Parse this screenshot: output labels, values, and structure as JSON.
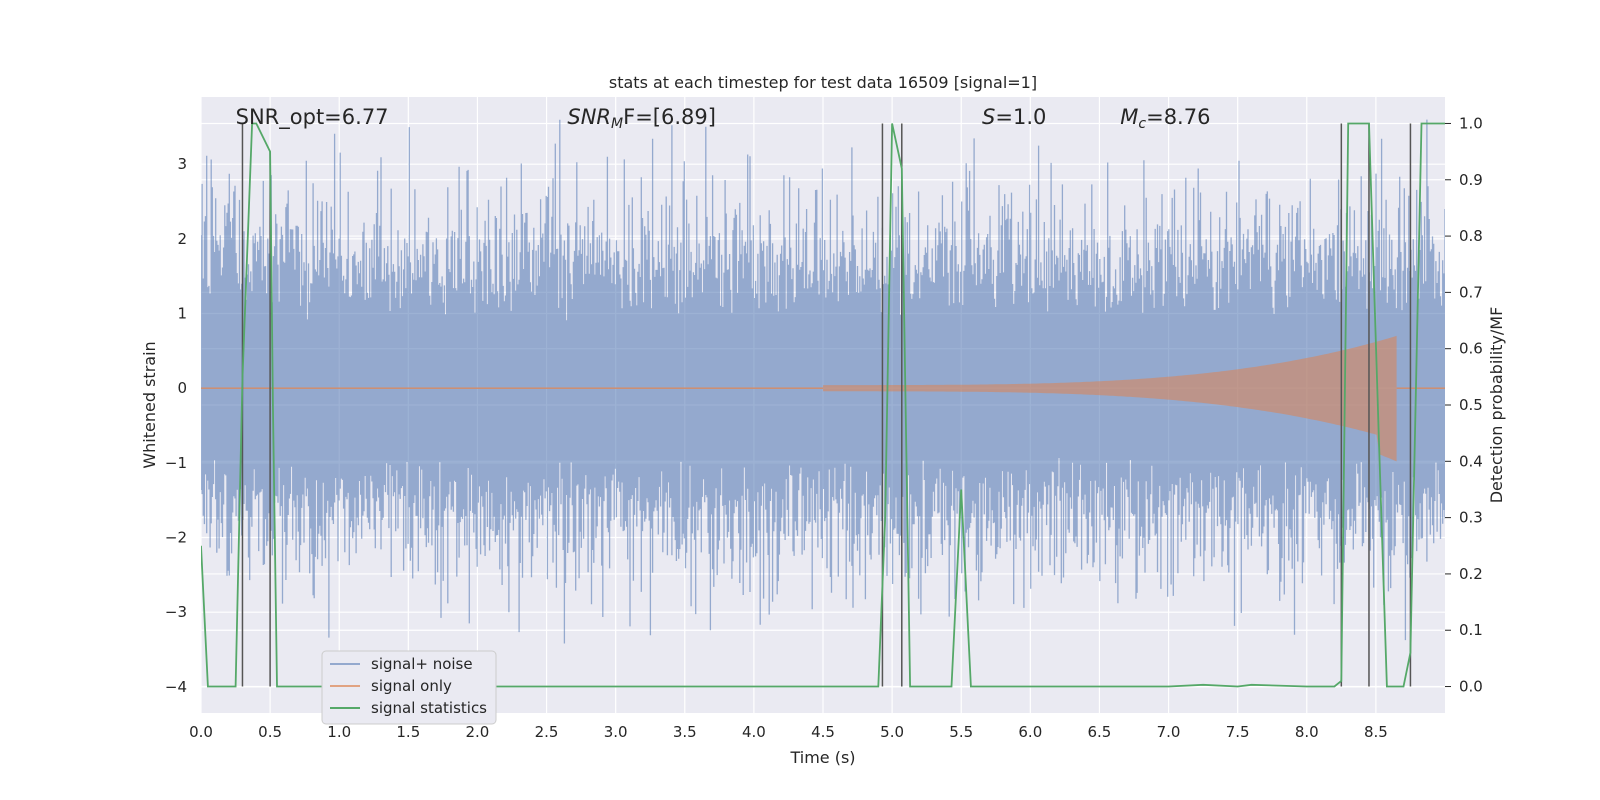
{
  "chart_data": {
    "type": "line",
    "title": "stats at each timestep for test data 16509 [signal=1]",
    "xlabel": "Time (s)",
    "ylabel": "Whitened strain",
    "ylabel_right": "Detection probability/MF",
    "xlim": [
      0.0,
      9.0
    ],
    "ylim": [
      -4.35,
      3.9
    ],
    "ylim_right": [
      -0.047,
      1.047
    ],
    "x_ticks": [
      0.0,
      0.5,
      1.0,
      1.5,
      2.0,
      2.5,
      3.0,
      3.5,
      4.0,
      4.5,
      5.0,
      5.5,
      6.0,
      6.5,
      7.0,
      7.5,
      8.0,
      8.5
    ],
    "x_tick_labels": [
      "0.0",
      "0.5",
      "1.0",
      "1.5",
      "2.0",
      "2.5",
      "3.0",
      "3.5",
      "4.0",
      "4.5",
      "5.0",
      "5.5",
      "6.0",
      "6.5",
      "7.0",
      "7.5",
      "8.0",
      "8.5"
    ],
    "y_ticks": [
      -4,
      -3,
      -2,
      -1,
      0,
      1,
      2,
      3
    ],
    "y_tick_labels": [
      "−4",
      "−3",
      "−2",
      "−1",
      "0",
      "1",
      "2",
      "3"
    ],
    "y_ticks_right": [
      0.0,
      0.1,
      0.2,
      0.3,
      0.4,
      0.5,
      0.6,
      0.7,
      0.8,
      0.9,
      1.0
    ],
    "y_tick_labels_right": [
      "0.0",
      "0.1",
      "0.2",
      "0.3",
      "0.4",
      "0.5",
      "0.6",
      "0.7",
      "0.8",
      "0.9",
      "1.0"
    ],
    "annotations": [
      {
        "text": "SNR_opt=6.77",
        "x": 0.2
      },
      {
        "text": "SNR",
        "sub": "M",
        "rest": "F=[6.89]",
        "italic": true,
        "x": 2.6
      },
      {
        "text": "S",
        "rest": "=1.0",
        "italic": true,
        "x": 5.6
      },
      {
        "text": "M",
        "sub": "c",
        "rest": "=8.76",
        "italic": true,
        "x": 6.6
      }
    ],
    "legend": {
      "location": "lower-left",
      "entries": [
        "signal+ noise",
        "signal only",
        "signal statistics"
      ]
    },
    "series": [
      {
        "name": "signal+ noise",
        "color": "#4c72b0",
        "axis": "left",
        "style": "noise",
        "sigma": 0.75,
        "n_points": 1100,
        "x_range": [
          0.0,
          9.0
        ]
      },
      {
        "name": "signal only",
        "color": "#dd8452",
        "axis": "left",
        "style": "chirp",
        "x_start": 4.5,
        "x_end": 8.65,
        "peak_amplitude": 0.7
      },
      {
        "name": "signal statistics",
        "color": "#55a868",
        "axis": "right",
        "x": [
          0.0,
          0.05,
          0.25,
          0.3,
          0.37,
          0.4,
          0.5,
          0.52,
          0.55,
          0.6,
          1.0,
          2.0,
          3.0,
          4.0,
          4.5,
          4.9,
          4.95,
          5.0,
          5.07,
          5.13,
          5.35,
          5.43,
          5.5,
          5.57,
          5.63,
          6.0,
          7.0,
          7.25,
          7.5,
          7.6,
          8.0,
          8.2,
          8.25,
          8.3,
          8.45,
          8.52,
          8.58,
          8.7,
          8.75,
          8.83,
          9.0
        ],
        "values": [
          0.25,
          0.0,
          0.0,
          0.55,
          1.0,
          1.0,
          0.95,
          0.5,
          0.0,
          0.0,
          0.0,
          0.0,
          0.0,
          0.0,
          0.0,
          0.0,
          0.3,
          1.0,
          0.92,
          0.0,
          0.0,
          0.0,
          0.35,
          0.0,
          0.0,
          0.0,
          0.0,
          0.003,
          0.0,
          0.003,
          0.0,
          0.0,
          0.01,
          1.0,
          1.0,
          0.45,
          0.0,
          0.0,
          0.06,
          1.0,
          1.0
        ]
      }
    ],
    "vertical_lines": {
      "color": "#555555",
      "segments": [
        {
          "x": 0.3,
          "y0": 0.0,
          "y1": 1.0
        },
        {
          "x": 0.5,
          "y0": 0.0,
          "y1": 0.95
        },
        {
          "x": 4.93,
          "y0": 0.0,
          "y1": 1.0
        },
        {
          "x": 5.07,
          "y0": 0.0,
          "y1": 1.0
        },
        {
          "x": 8.25,
          "y0": 0.0,
          "y1": 1.0
        },
        {
          "x": 8.45,
          "y0": 0.0,
          "y1": 1.0
        },
        {
          "x": 8.75,
          "y0": 0.0,
          "y1": 1.0
        }
      ]
    }
  }
}
